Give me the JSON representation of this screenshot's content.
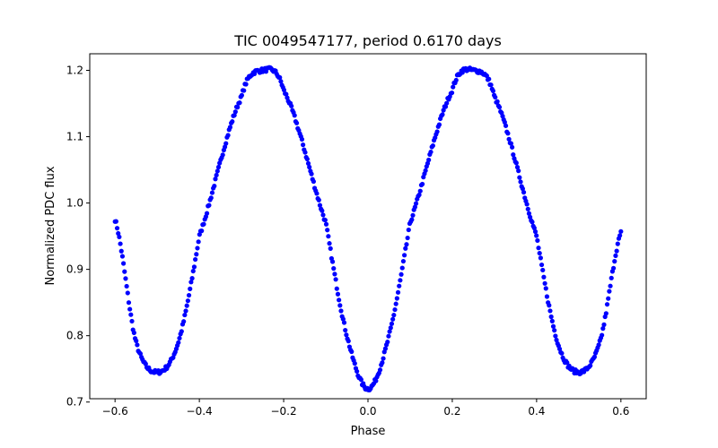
{
  "chart_data": {
    "type": "scatter",
    "title": "TIC 0049547177, period 0.6170 days",
    "xlabel": "Phase",
    "ylabel": "Normalized PDC flux",
    "xlim": [
      -0.66,
      0.66
    ],
    "ylim": [
      0.705,
      1.225
    ],
    "xticks": [
      -0.6,
      -0.4,
      -0.2,
      0.0,
      0.2,
      0.4,
      0.6
    ],
    "xtick_labels": [
      "−0.6",
      "−0.4",
      "−0.2",
      "0.0",
      "0.2",
      "0.4",
      "0.6"
    ],
    "yticks": [
      0.7,
      0.8,
      0.9,
      1.0,
      1.1,
      1.2
    ],
    "ytick_labels": [
      "0.7",
      "0.8",
      "0.9",
      "1.0",
      "1.1",
      "1.2"
    ],
    "marker_color": "#0000ff",
    "series": [
      {
        "name": "flux",
        "x_range": [
          -0.6,
          0.6
        ],
        "n_points": 480,
        "anchor_points": [
          [
            -0.6,
            0.975
          ],
          [
            -0.55,
            0.79
          ],
          [
            -0.5,
            0.745
          ],
          [
            -0.45,
            0.79
          ],
          [
            -0.4,
            0.95
          ],
          [
            -0.3,
            1.16
          ],
          [
            -0.25,
            1.2
          ],
          [
            -0.2,
            1.17
          ],
          [
            -0.1,
            0.97
          ],
          [
            -0.05,
            0.8
          ],
          [
            0.0,
            0.72
          ],
          [
            0.05,
            0.8
          ],
          [
            0.1,
            0.97
          ],
          [
            0.2,
            1.17
          ],
          [
            0.25,
            1.2
          ],
          [
            0.3,
            1.16
          ],
          [
            0.4,
            0.95
          ],
          [
            0.45,
            0.79
          ],
          [
            0.5,
            0.745
          ],
          [
            0.55,
            0.79
          ],
          [
            0.6,
            0.955
          ]
        ]
      }
    ]
  }
}
